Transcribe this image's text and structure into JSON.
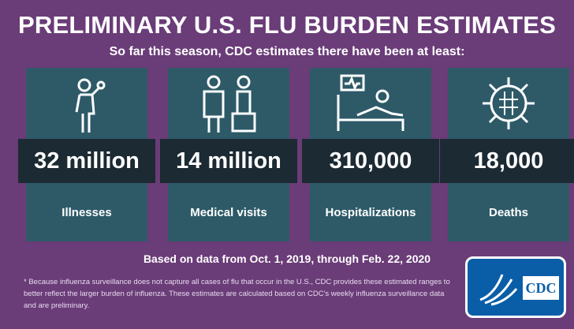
{
  "title": "PRELIMINARY U.S. FLU BURDEN ESTIMATES",
  "subtitle": "So far this season, CDC estimates there have been at least:",
  "cards": [
    {
      "value": "32 million",
      "label": "Illnesses"
    },
    {
      "value": "14 million",
      "label": "Medical visits"
    },
    {
      "value": "310,000",
      "label": "Hospitalizations"
    },
    {
      "value": "18,000",
      "label": "Deaths"
    }
  ],
  "basis": "Based on data from Oct. 1, 2019, through Feb. 22, 2020",
  "footnote": "* Because influenza surveillance does not capture all cases of flu that occur in the U.S., CDC provides these estimated ranges to better reflect the larger burden of influenza. These estimates are calculated based on CDC's weekly influenza surveillance data and are preliminary.",
  "logo": "CDC"
}
